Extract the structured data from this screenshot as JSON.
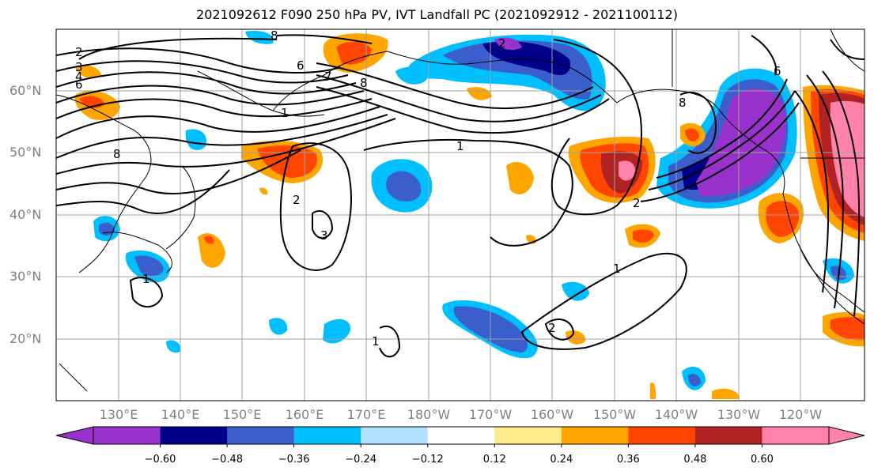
{
  "title": "2021092612 F090 250 hPa PV, IVT Landfall PC (2021092912 - 2021100112)",
  "map": {
    "lat_labels": [
      "60°N",
      "50°N",
      "40°N",
      "30°N",
      "20°N"
    ],
    "lon_labels": [
      "130°E",
      "140°E",
      "150°E",
      "160°E",
      "170°E",
      "180°W",
      "170°W",
      "160°W",
      "150°W",
      "140°W",
      "130°W",
      "120°W"
    ],
    "contour_labels": [
      "2",
      "3",
      "4",
      "6",
      "8",
      "1",
      "6",
      "8",
      "1",
      "1",
      "2",
      "3",
      "2",
      "1",
      "1",
      "2",
      "7",
      "8",
      "6",
      "8",
      "2"
    ]
  },
  "colorbar": {
    "ticks": [
      "−0.60",
      "−0.48",
      "−0.36",
      "−0.24",
      "−0.12",
      "0.12",
      "0.24",
      "0.36",
      "0.48",
      "0.60"
    ],
    "colors": [
      "#9932cc",
      "#00008b",
      "#3a5fcd",
      "#00bfff",
      "#b0e2ff",
      "#ffffff",
      "#ffeb8a",
      "#ffa500",
      "#ff4500",
      "#b22222",
      "#ff82ab"
    ]
  }
}
